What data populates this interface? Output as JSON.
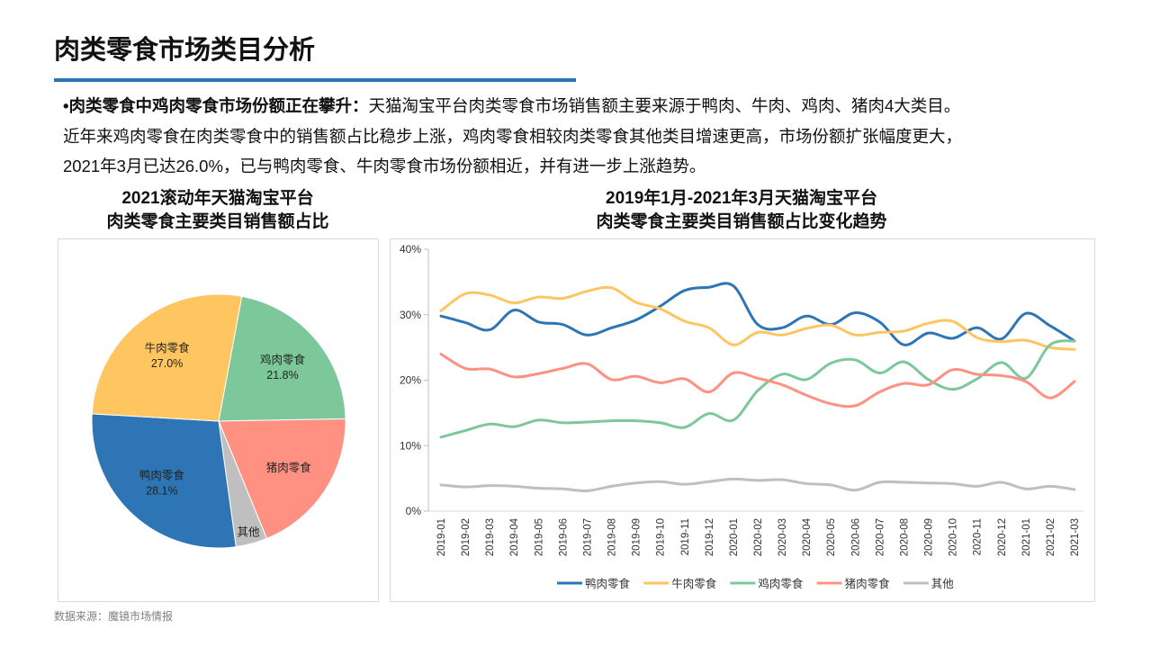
{
  "title": "肉类零食市场类目分析",
  "paragraph": {
    "bold_lead": "•肉类零食中鸡肉零食市场份额正在攀升：",
    "line1": "天猫淘宝平台肉类零食市场销售额主要来源于鸭肉、牛肉、鸡肉、猪肉4大类目。",
    "line2": "近年来鸡肉零食在肉类零食中的销售额占比稳步上涨，鸡肉零食相较肉类零食其他类目增速更高，市场份额扩张幅度更大，",
    "line3": "2021年3月已达26.0%，已与鸭肉零食、牛肉零食市场份额相近，并有进一步上涨趋势。"
  },
  "source": "数据来源：魔镜市场情报",
  "colors": {
    "duck": "#2e75b6",
    "beef": "#ffc561",
    "chicken": "#7dc89a",
    "pork": "#ff9183",
    "other": "#bfbfbf",
    "accent": "#2e75b6"
  },
  "chart_data": [
    {
      "type": "pie",
      "title_line1": "2021滚动年天猫淘宝平台",
      "title_line2": "肉类零食主要类目销售额占比",
      "slices": [
        {
          "name": "鸡肉零食",
          "value": 21.8,
          "label": "21.8%",
          "color": "#7dc89a"
        },
        {
          "name": "猪肉零食",
          "value": 19.1,
          "label": "",
          "color": "#ff9183"
        },
        {
          "name": "其他",
          "value": 4.0,
          "label": "",
          "color": "#bfbfbf"
        },
        {
          "name": "鸭肉零食",
          "value": 28.1,
          "label": "28.1%",
          "color": "#2e75b6"
        },
        {
          "name": "牛肉零食",
          "value": 27.0,
          "label": "27.0%",
          "color": "#ffc561"
        }
      ]
    },
    {
      "type": "line",
      "title_line1": "2019年1月-2021年3月天猫淘宝平台",
      "title_line2": "肉类零食主要类目销售额占比变化趋势",
      "ylim": [
        0,
        40
      ],
      "yticks": [
        "0%",
        "10%",
        "20%",
        "30%",
        "40%"
      ],
      "legend": "bottom",
      "grid": false,
      "categories": [
        "2019-01",
        "2019-02",
        "2019-03",
        "2019-04",
        "2019-05",
        "2019-06",
        "2019-07",
        "2019-08",
        "2019-09",
        "2019-10",
        "2019-11",
        "2019-12",
        "2020-01",
        "2020-02",
        "2020-03",
        "2020-04",
        "2020-05",
        "2020-06",
        "2020-07",
        "2020-08",
        "2020-09",
        "2020-10",
        "2020-11",
        "2020-12",
        "2021-01",
        "2021-02",
        "2021-03"
      ],
      "series": [
        {
          "name": "鸭肉零食",
          "color": "#2e75b6",
          "values": [
            29.8,
            28.8,
            27.7,
            30.7,
            28.9,
            28.5,
            26.9,
            28.0,
            29.2,
            31.3,
            33.7,
            34.2,
            34.4,
            28.5,
            28.0,
            29.8,
            28.5,
            30.3,
            28.9,
            25.4,
            27.2,
            26.4,
            28.0,
            26.3,
            30.2,
            28.3,
            26.0
          ]
        },
        {
          "name": "牛肉零食",
          "color": "#ffc561",
          "values": [
            30.6,
            33.2,
            33.0,
            31.8,
            32.7,
            32.5,
            33.6,
            34.1,
            31.9,
            30.9,
            29.0,
            28.0,
            25.4,
            27.3,
            26.9,
            27.9,
            28.4,
            26.9,
            27.3,
            27.5,
            28.7,
            29.0,
            26.5,
            25.9,
            26.1,
            25.0,
            24.7
          ]
        },
        {
          "name": "鸡肉零食",
          "color": "#7dc89a",
          "values": [
            11.3,
            12.3,
            13.3,
            12.9,
            13.9,
            13.5,
            13.6,
            13.8,
            13.8,
            13.5,
            12.8,
            14.9,
            13.9,
            18.4,
            20.9,
            20.1,
            22.6,
            23.1,
            21.1,
            22.8,
            20.1,
            18.6,
            20.2,
            22.7,
            20.3,
            25.4,
            26.0
          ]
        },
        {
          "name": "猪肉零食",
          "color": "#ff9183",
          "values": [
            24.0,
            21.8,
            21.7,
            20.5,
            21.0,
            21.8,
            22.5,
            20.1,
            20.6,
            19.6,
            20.2,
            18.2,
            21.1,
            20.3,
            19.3,
            17.7,
            16.4,
            16.1,
            18.2,
            19.5,
            19.3,
            21.6,
            20.9,
            20.7,
            19.8,
            17.3,
            19.8
          ]
        },
        {
          "name": "其他",
          "color": "#bfbfbf",
          "values": [
            4.0,
            3.7,
            3.9,
            3.8,
            3.5,
            3.4,
            3.1,
            3.8,
            4.3,
            4.5,
            4.1,
            4.5,
            4.9,
            4.7,
            4.8,
            4.2,
            4.0,
            3.2,
            4.4,
            4.4,
            4.3,
            4.2,
            3.8,
            4.4,
            3.4,
            3.8,
            3.3
          ]
        }
      ]
    }
  ]
}
